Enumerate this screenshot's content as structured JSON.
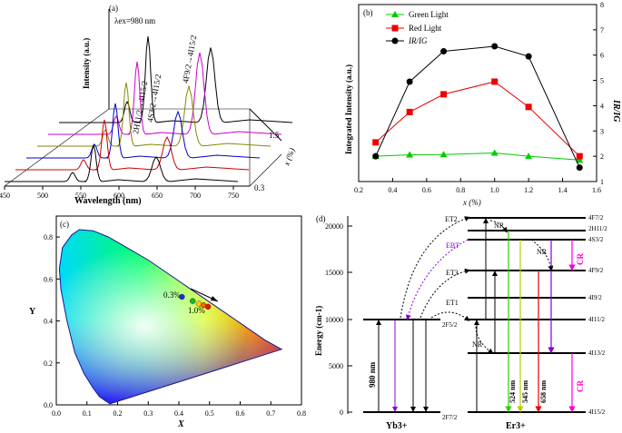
{
  "panel_a": {
    "label": "(a)",
    "excitation_label": "λex=980 nm",
    "ylabel": "Intensity (a.u.)",
    "xlabel": "Wavelength (nm)",
    "zlabel": "x (%)",
    "x_ticks": [
      "450",
      "500",
      "550",
      "600",
      "650",
      "700",
      "750"
    ],
    "z_ticks": [
      "1.5",
      "0.3"
    ],
    "transition_labels": [
      "2H11/2→4I15/2",
      "4S3/2→4I15/2",
      "4F9/2→4I15/2"
    ],
    "series_colors": [
      "#000000",
      "#cc0000",
      "#0000cc",
      "#888800",
      "#cc00cc",
      "#000000"
    ]
  },
  "chart_data": [
    {
      "type": "line",
      "title": "",
      "xlabel": "x (%)",
      "ylabel": "Integrated Intensity (a.u.)",
      "ylabel_right": "IR/IG",
      "xlim": [
        0.2,
        1.6
      ],
      "y_right_lim": [
        1,
        8
      ],
      "x_ticks": [
        "0.2",
        "0.4",
        "0.6",
        "0.8",
        "1.0",
        "1.2",
        "1.4",
        "1.6"
      ],
      "y_right_ticks": [
        "1",
        "2",
        "3",
        "4",
        "5",
        "6",
        "7",
        "8"
      ],
      "legend_position": "top-left",
      "x": [
        0.3,
        0.5,
        0.7,
        1.0,
        1.2,
        1.5
      ],
      "series": [
        {
          "name": "Green Light",
          "color": "#00cc00",
          "marker": "triangle",
          "values": [
            2.0,
            2.06,
            2.07,
            2.13,
            2.0,
            1.85
          ]
        },
        {
          "name": "Red Light",
          "color": "#ee0000",
          "marker": "square",
          "values": [
            2.55,
            3.75,
            4.45,
            4.95,
            3.95,
            2.0
          ]
        },
        {
          "name": "IR/IG",
          "color": "#000000",
          "marker": "circle",
          "values": [
            2.0,
            4.95,
            6.15,
            6.35,
            5.95,
            1.55
          ]
        }
      ],
      "panel_label": "(b)"
    },
    {
      "type": "scatter",
      "title": "",
      "xlabel": "X",
      "ylabel": "Y",
      "xlim": [
        0.0,
        0.8
      ],
      "ylim": [
        0.0,
        0.9
      ],
      "x_ticks": [
        "0.0",
        "0.1",
        "0.2",
        "0.3",
        "0.4",
        "0.5",
        "0.6",
        "0.7",
        "0.8"
      ],
      "y_ticks": [
        "0.0",
        "0.2",
        "0.4",
        "0.6",
        "0.8"
      ],
      "points": [
        {
          "x": 0.41,
          "y": 0.515,
          "color": "#1133dd"
        },
        {
          "x": 0.445,
          "y": 0.495,
          "color": "#11bb22"
        },
        {
          "x": 0.465,
          "y": 0.482,
          "color": "#ffcc00"
        },
        {
          "x": 0.48,
          "y": 0.475,
          "color": "#ff6600"
        },
        {
          "x": 0.495,
          "y": 0.468,
          "color": "#ee1111"
        }
      ],
      "annotations": [
        "0.3%",
        "1.0%"
      ],
      "panel_label": "(c)"
    }
  ],
  "panel_d": {
    "label": "(d)",
    "ylabel": "Energy (cm-1)",
    "y_ticks": [
      "0",
      "5000",
      "10000",
      "15000",
      "20000"
    ],
    "ion_labels": [
      "Yb3+",
      "Er3+"
    ],
    "yb_levels": [
      "2F5/2",
      "2F7/2"
    ],
    "er_levels": [
      "4F7/2",
      "2H11/2",
      "4S3/2",
      "4F9/2",
      "4I9/2",
      "4I11/2",
      "4I13/2",
      "4I15/2"
    ],
    "transfer_labels": [
      "ET2",
      "EBT",
      "ET3",
      "ET1",
      "NR",
      "NR",
      "NR"
    ],
    "wavelengths": [
      "980 nm",
      "524 nm",
      "545 nm",
      "658 nm"
    ],
    "cr_labels": [
      "CR",
      "CR"
    ]
  }
}
